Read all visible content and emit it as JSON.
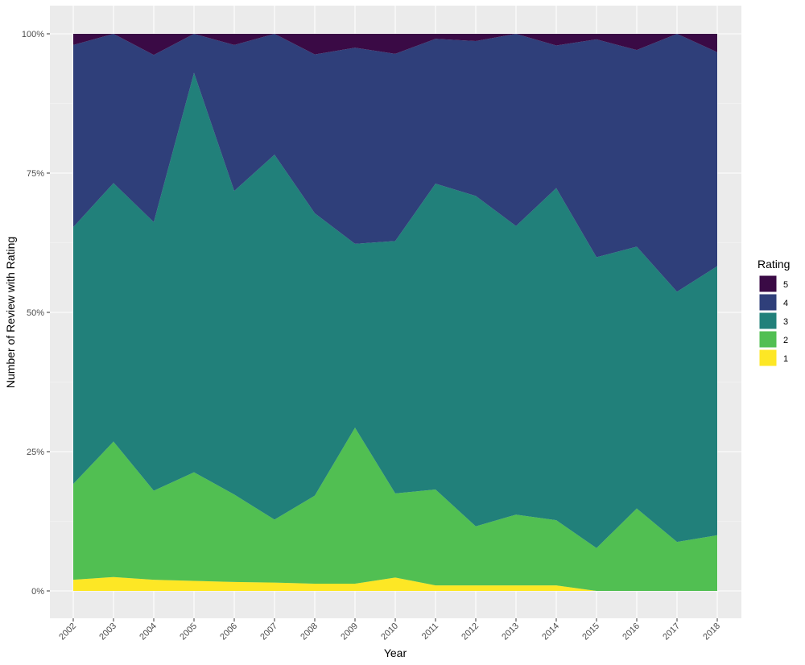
{
  "chart_data": {
    "type": "area",
    "stacked": "percent",
    "xlabel": "Year",
    "ylabel": "Number of Review with Rating",
    "x": [
      "2002",
      "2003",
      "2004",
      "2005",
      "2006",
      "2007",
      "2008",
      "2009",
      "2010",
      "2011",
      "2012",
      "2013",
      "2014",
      "2015",
      "2016",
      "2017",
      "2018"
    ],
    "yticks": [
      "0%",
      "25%",
      "50%",
      "75%",
      "100%"
    ],
    "ylim": [
      0,
      1
    ],
    "grid": true,
    "legend": {
      "title": "Rating",
      "position": "right",
      "order": [
        "5",
        "4",
        "3",
        "2",
        "1"
      ]
    },
    "series": [
      {
        "name": "1",
        "color": "#FDE725",
        "values": [
          0.02,
          0.025,
          0.02,
          0.018,
          0.016,
          0.015,
          0.013,
          0.013,
          0.024,
          0.01,
          0.01,
          0.01,
          0.01,
          0.0,
          0.0,
          0.0,
          0.0
        ]
      },
      {
        "name": "2",
        "color": "#51BF52",
        "values": [
          0.172,
          0.243,
          0.16,
          0.195,
          0.157,
          0.113,
          0.158,
          0.28,
          0.151,
          0.172,
          0.106,
          0.127,
          0.117,
          0.077,
          0.148,
          0.088,
          0.1
        ]
      },
      {
        "name": "3",
        "color": "#21807A",
        "values": [
          0.461,
          0.464,
          0.482,
          0.717,
          0.545,
          0.655,
          0.507,
          0.33,
          0.453,
          0.549,
          0.593,
          0.518,
          0.596,
          0.522,
          0.47,
          0.449,
          0.483
        ]
      },
      {
        "name": "4",
        "color": "#2F3F7A",
        "values": [
          0.327,
          0.268,
          0.3,
          0.07,
          0.262,
          0.217,
          0.285,
          0.352,
          0.336,
          0.26,
          0.278,
          0.345,
          0.256,
          0.391,
          0.353,
          0.463,
          0.384
        ]
      },
      {
        "name": "5",
        "color": "#3A0A45",
        "values": [
          0.02,
          0.0,
          0.038,
          0.0,
          0.02,
          0.0,
          0.037,
          0.025,
          0.036,
          0.009,
          0.013,
          0.0,
          0.021,
          0.01,
          0.029,
          0.0,
          0.033
        ]
      }
    ]
  }
}
